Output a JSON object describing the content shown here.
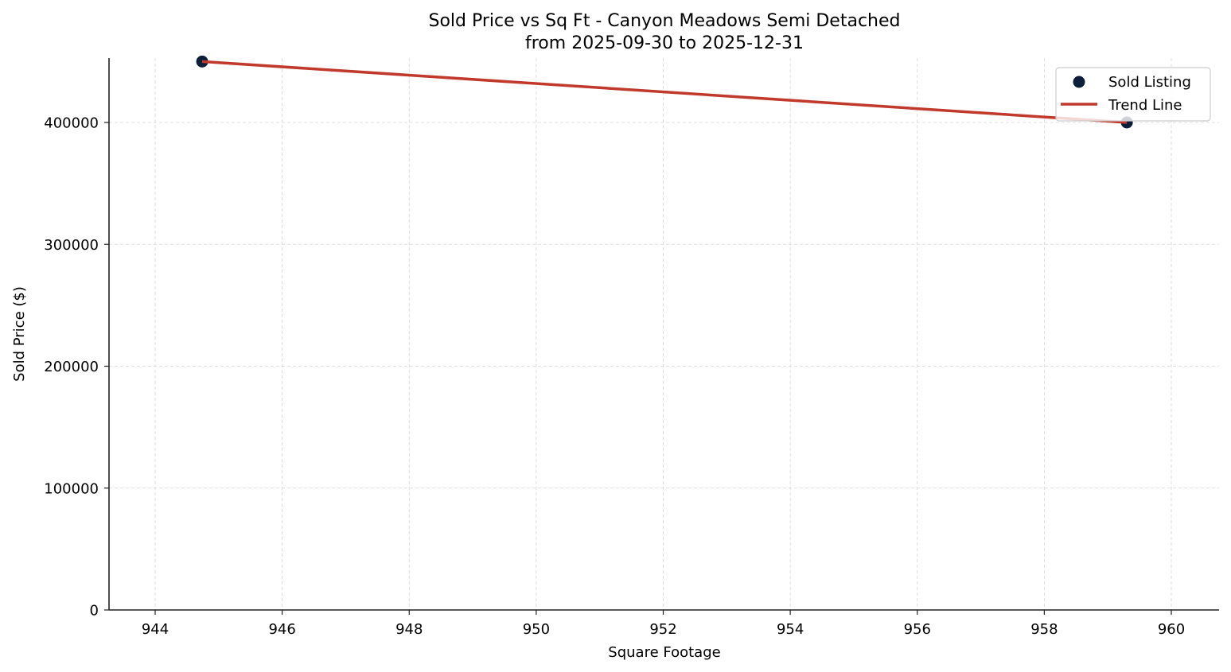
{
  "chart_data": {
    "type": "scatter",
    "title": "Sold Price vs Sq Ft - Canyon Meadows Semi Detached",
    "subtitle": "from 2025-09-30 to 2025-12-31",
    "xlabel": "Square Footage",
    "ylabel": "Sold Price ($)",
    "xlim": [
      943.3,
      960.8
    ],
    "ylim": [
      0,
      452000
    ],
    "xticks": [
      944,
      946,
      948,
      950,
      952,
      954,
      956,
      958,
      960
    ],
    "yticks": [
      0,
      100000,
      200000,
      300000,
      400000
    ],
    "grid": true,
    "legend_position": "upper right",
    "series": [
      {
        "name": "Sold Listing",
        "kind": "scatter",
        "color": "#0b1f3a",
        "points": [
          {
            "x": 944.74,
            "y": 450000
          },
          {
            "x": 959.3,
            "y": 400000
          }
        ]
      },
      {
        "name": "Trend Line",
        "kind": "line",
        "color": "#c0392b",
        "points": [
          {
            "x": 944.74,
            "y": 450000
          },
          {
            "x": 959.3,
            "y": 400000
          }
        ]
      }
    ]
  },
  "labels": {
    "title": "Sold Price vs Sq Ft - Canyon Meadows Semi Detached",
    "subtitle": "from 2025-09-30 to 2025-12-31",
    "xlabel": "Square Footage",
    "ylabel": "Sold Price ($)",
    "legend_scatter": "Sold Listing",
    "legend_line": "Trend Line"
  }
}
